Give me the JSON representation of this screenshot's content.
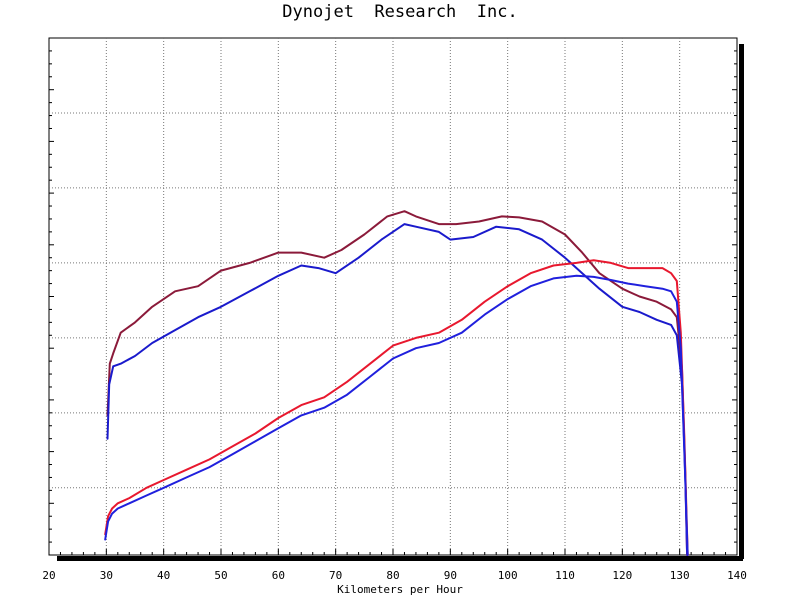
{
  "chart_data": {
    "type": "line",
    "title": "Dynojet  Research  Inc.",
    "xlabel": "Kilometers per Hour",
    "ylabel": "",
    "xlim": [
      20,
      140
    ],
    "x_ticks": [
      20,
      30,
      40,
      50,
      60,
      70,
      80,
      90,
      100,
      110,
      120,
      130,
      140
    ],
    "grid": true,
    "legend": "none",
    "series": [
      {
        "color": "#8b1a3a",
        "x": [
          30.2,
          30.6,
          31.2,
          32.5,
          35,
          38,
          42,
          46,
          50,
          55,
          60,
          64,
          68,
          71,
          75,
          79,
          82,
          84,
          88,
          91,
          95,
          99,
          102,
          106,
          110,
          113,
          116,
          120,
          123,
          126,
          128.5,
          129.5,
          130.4,
          131,
          131.3
        ],
        "y": [
          0.27,
          0.37,
          0.39,
          0.43,
          0.45,
          0.48,
          0.51,
          0.52,
          0.55,
          0.565,
          0.585,
          0.585,
          0.575,
          0.59,
          0.62,
          0.655,
          0.665,
          0.655,
          0.64,
          0.64,
          0.645,
          0.655,
          0.653,
          0.645,
          0.62,
          0.585,
          0.545,
          0.515,
          0.5,
          0.49,
          0.475,
          0.46,
          0.36,
          0.15,
          0.0
        ]
      },
      {
        "color": "#1a1acc",
        "x": [
          30.2,
          30.5,
          31.2,
          32.5,
          35,
          38,
          42,
          46,
          50,
          55,
          60,
          64,
          67,
          70,
          74,
          78,
          82,
          84,
          88,
          90,
          94,
          98,
          102,
          106,
          110,
          113,
          116,
          120,
          123,
          126,
          128.5,
          129.5,
          130.4,
          131,
          131.3
        ],
        "y": [
          0.225,
          0.33,
          0.365,
          0.37,
          0.385,
          0.41,
          0.435,
          0.46,
          0.48,
          0.51,
          0.54,
          0.56,
          0.555,
          0.545,
          0.575,
          0.61,
          0.64,
          0.635,
          0.625,
          0.61,
          0.615,
          0.635,
          0.63,
          0.61,
          0.575,
          0.545,
          0.515,
          0.48,
          0.47,
          0.455,
          0.445,
          0.425,
          0.33,
          0.14,
          0.0
        ]
      },
      {
        "color": "#e8182e",
        "x": [
          29.8,
          30.3,
          31,
          32,
          34,
          37,
          40,
          44,
          48,
          52,
          56,
          60,
          64,
          68,
          72,
          76,
          80,
          84,
          88,
          92,
          96,
          100,
          104,
          108,
          112,
          115,
          118,
          121,
          124,
          127,
          128.5,
          129.5,
          130.2,
          130.8,
          131.2,
          131.4
        ],
        "y": [
          0.04,
          0.075,
          0.09,
          0.1,
          0.11,
          0.13,
          0.145,
          0.165,
          0.185,
          0.21,
          0.235,
          0.265,
          0.29,
          0.305,
          0.335,
          0.37,
          0.405,
          0.42,
          0.43,
          0.455,
          0.49,
          0.52,
          0.545,
          0.56,
          0.565,
          0.57,
          0.565,
          0.555,
          0.555,
          0.555,
          0.545,
          0.53,
          0.43,
          0.23,
          0.08,
          0.0
        ]
      },
      {
        "color": "#2020dd",
        "x": [
          29.8,
          30.3,
          31,
          32,
          34,
          37,
          40,
          44,
          48,
          52,
          56,
          60,
          64,
          68,
          72,
          76,
          80,
          84,
          88,
          92,
          96,
          100,
          104,
          108,
          112,
          115,
          118,
          121,
          124,
          127,
          128.5,
          129.5,
          130.2,
          130.8,
          131.2,
          131.4
        ],
        "y": [
          0.03,
          0.065,
          0.08,
          0.09,
          0.1,
          0.115,
          0.13,
          0.15,
          0.17,
          0.195,
          0.22,
          0.245,
          0.27,
          0.285,
          0.31,
          0.345,
          0.38,
          0.4,
          0.41,
          0.43,
          0.465,
          0.495,
          0.52,
          0.535,
          0.54,
          0.538,
          0.532,
          0.525,
          0.52,
          0.515,
          0.51,
          0.49,
          0.4,
          0.21,
          0.07,
          0.0
        ]
      }
    ]
  }
}
